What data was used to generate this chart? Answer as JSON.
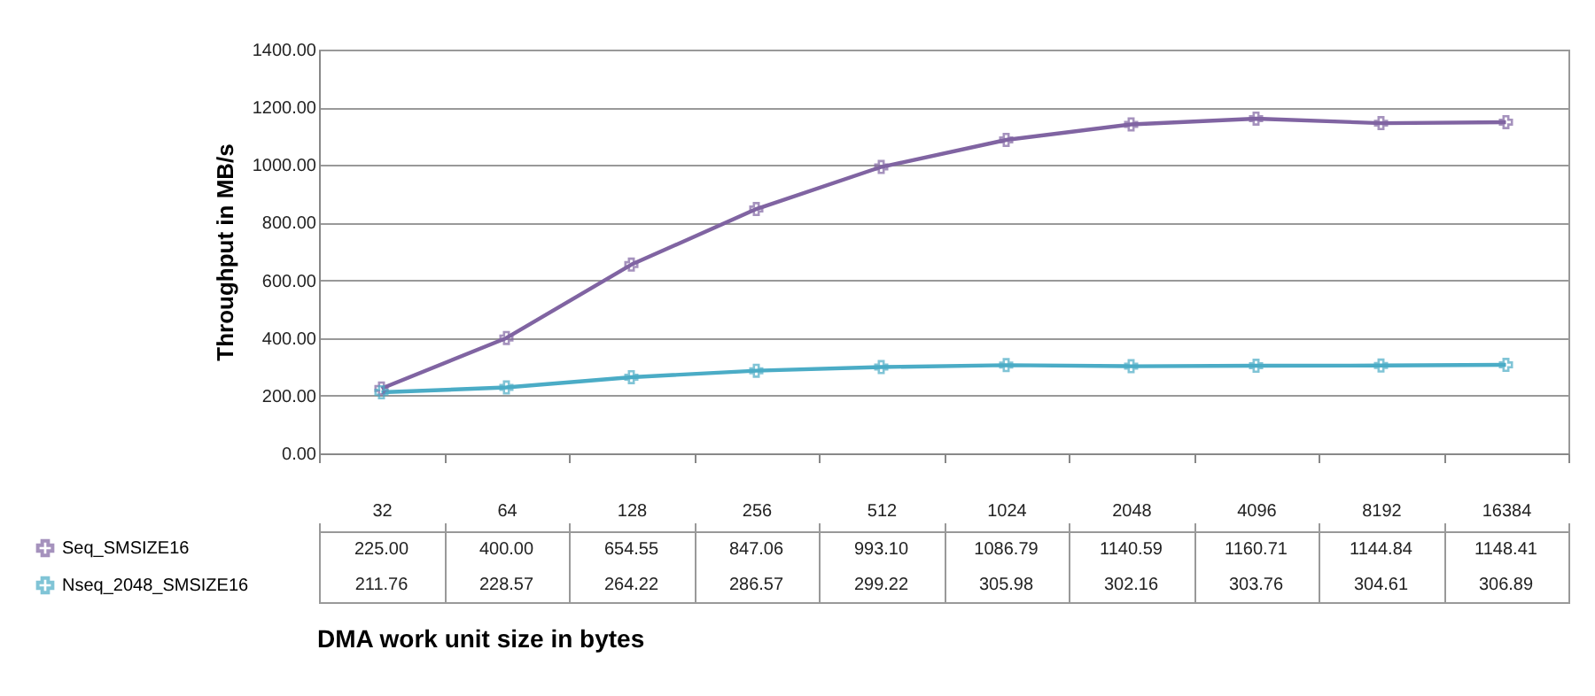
{
  "chart_data": {
    "type": "line",
    "ylabel": "Throughput in MB/s",
    "xlabel": "DMA work unit size in bytes",
    "categories": [
      "32",
      "64",
      "128",
      "256",
      "512",
      "1024",
      "2048",
      "4096",
      "8192",
      "16384"
    ],
    "series": [
      {
        "name": "Seq_SMSIZE16",
        "color": "#8064a2",
        "values": [
          225.0,
          400.0,
          654.55,
          847.06,
          993.1,
          1086.79,
          1140.59,
          1160.71,
          1144.84,
          1148.41
        ],
        "value_labels": [
          "225.00",
          "400.00",
          "654.55",
          "847.06",
          "993.10",
          "1086.79",
          "1140.59",
          "1160.71",
          "1144.84",
          "1148.41"
        ]
      },
      {
        "name": "Nseq_2048_SMSIZE16",
        "color": "#4bacc6",
        "values": [
          211.76,
          228.57,
          264.22,
          286.57,
          299.22,
          305.98,
          302.16,
          303.76,
          304.61,
          306.89
        ],
        "value_labels": [
          "211.76",
          "228.57",
          "264.22",
          "286.57",
          "299.22",
          "305.98",
          "302.16",
          "303.76",
          "304.61",
          "306.89"
        ]
      }
    ],
    "ylim": [
      0,
      1400
    ],
    "yticks": [
      {
        "value": 0,
        "label": "0.00"
      },
      {
        "value": 200,
        "label": "200.00"
      },
      {
        "value": 400,
        "label": "400.00"
      },
      {
        "value": 600,
        "label": "600.00"
      },
      {
        "value": 800,
        "label": "800.00"
      },
      {
        "value": 1000,
        "label": "1000.00"
      },
      {
        "value": 1200,
        "label": "1200.00"
      },
      {
        "value": 1400,
        "label": "1400.00"
      }
    ],
    "grid": "y",
    "marker": "cross",
    "legend": "bottom left"
  }
}
